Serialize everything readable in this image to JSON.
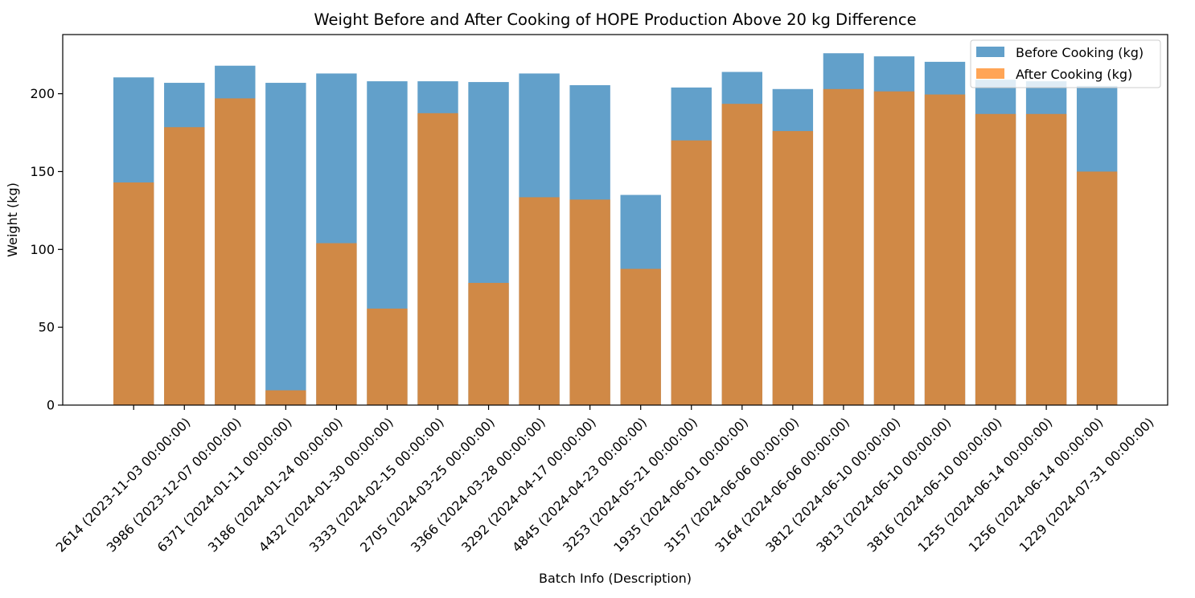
{
  "chart_data": {
    "type": "bar",
    "title": "Weight Before and After Cooking of HOPE Production Above 20 kg Difference",
    "xlabel": "Batch Info (Description)",
    "ylabel": "Weight (kg)",
    "ylim": [
      0,
      238
    ],
    "yticks": [
      0,
      50,
      100,
      150,
      200
    ],
    "grid": false,
    "legend_position": "top-right",
    "categories": [
      "2614 (2023-11-03 00:00:00)",
      "3986 (2023-12-07 00:00:00)",
      "6371 (2024-01-11 00:00:00)",
      "3186 (2024-01-24 00:00:00)",
      "4432 (2024-01-30 00:00:00)",
      "3333 (2024-02-15 00:00:00)",
      "2705 (2024-03-25 00:00:00)",
      "3366 (2024-03-28 00:00:00)",
      "3292 (2024-04-17 00:00:00)",
      "4845 (2024-04-23 00:00:00)",
      "3253 (2024-05-21 00:00:00)",
      "1935 (2024-06-01 00:00:00)",
      "3157 (2024-06-06 00:00:00)",
      "3164 (2024-06-06 00:00:00)",
      "3812 (2024-06-10 00:00:00)",
      "3813 (2024-06-10 00:00:00)",
      "3816 (2024-06-10 00:00:00)",
      "1255 (2024-06-14 00:00:00)",
      "1256 (2024-06-14 00:00:00)",
      "1229 (2024-07-31 00:00:00)"
    ],
    "series": [
      {
        "name": "Before Cooking (kg)",
        "color": "#1f77b4",
        "opacity": 0.7,
        "values": [
          210.5,
          207.0,
          218.0,
          207.0,
          213.0,
          208.0,
          208.0,
          207.5,
          213.0,
          205.5,
          135.0,
          204.0,
          214.0,
          203.0,
          226.0,
          224.0,
          220.5,
          209.0,
          208.0,
          205.0
        ]
      },
      {
        "name": "After Cooking (kg)",
        "color": "#ff7f0e",
        "opacity": 0.7,
        "values": [
          143.0,
          178.5,
          197.0,
          9.5,
          104.0,
          62.0,
          187.5,
          78.5,
          133.5,
          132.0,
          87.5,
          170.0,
          193.5,
          176.0,
          203.0,
          201.5,
          199.5,
          187.0,
          187.0,
          150.0
        ]
      }
    ]
  }
}
